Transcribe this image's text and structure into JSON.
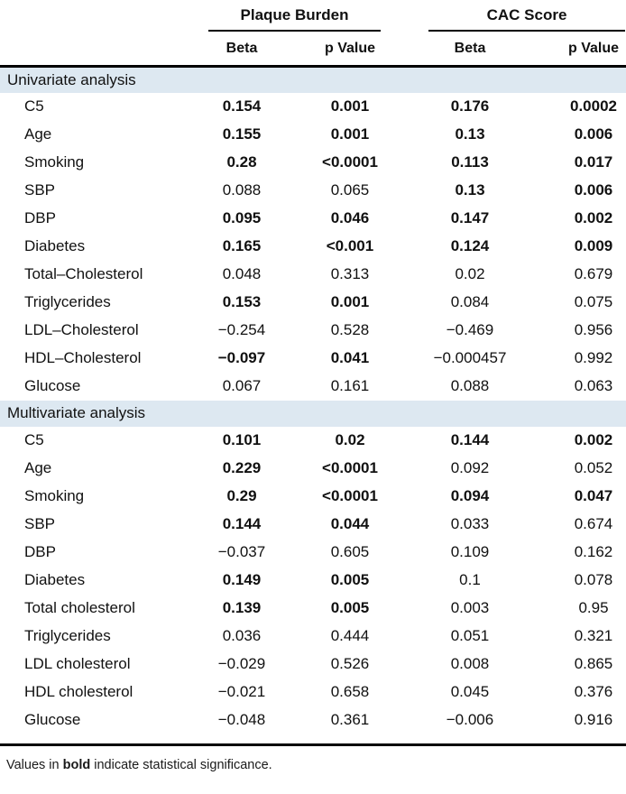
{
  "table": {
    "groups": [
      {
        "label": "Plaque Burden"
      },
      {
        "label": "CAC Score"
      }
    ],
    "subheaders": [
      "Beta",
      "p Value",
      "Beta",
      "p Value"
    ],
    "sections": [
      {
        "title": "Univariate analysis",
        "rows": [
          {
            "label": "C5",
            "cells": [
              {
                "v": "0.154",
                "b": true
              },
              {
                "v": "0.001",
                "b": true
              },
              {
                "v": "0.176",
                "b": true
              },
              {
                "v": "0.0002",
                "b": true
              }
            ]
          },
          {
            "label": "Age",
            "cells": [
              {
                "v": "0.155",
                "b": true
              },
              {
                "v": "0.001",
                "b": true
              },
              {
                "v": "0.13",
                "b": true
              },
              {
                "v": "0.006",
                "b": true
              }
            ]
          },
          {
            "label": "Smoking",
            "cells": [
              {
                "v": "0.28",
                "b": true
              },
              {
                "v": "<0.0001",
                "b": true
              },
              {
                "v": "0.113",
                "b": true
              },
              {
                "v": "0.017",
                "b": true
              }
            ]
          },
          {
            "label": "SBP",
            "cells": [
              {
                "v": "0.088",
                "b": false
              },
              {
                "v": "0.065",
                "b": false
              },
              {
                "v": "0.13",
                "b": true
              },
              {
                "v": "0.006",
                "b": true
              }
            ]
          },
          {
            "label": "DBP",
            "cells": [
              {
                "v": "0.095",
                "b": true
              },
              {
                "v": "0.046",
                "b": true
              },
              {
                "v": "0.147",
                "b": true
              },
              {
                "v": "0.002",
                "b": true
              }
            ]
          },
          {
            "label": "Diabetes",
            "cells": [
              {
                "v": "0.165",
                "b": true
              },
              {
                "v": "<0.001",
                "b": true
              },
              {
                "v": "0.124",
                "b": true
              },
              {
                "v": "0.009",
                "b": true
              }
            ]
          },
          {
            "label": "Total–Cholesterol",
            "cells": [
              {
                "v": "0.048",
                "b": false
              },
              {
                "v": "0.313",
                "b": false
              },
              {
                "v": "0.02",
                "b": false
              },
              {
                "v": "0.679",
                "b": false
              }
            ]
          },
          {
            "label": "Triglycerides",
            "cells": [
              {
                "v": "0.153",
                "b": true
              },
              {
                "v": "0.001",
                "b": true
              },
              {
                "v": "0.084",
                "b": false
              },
              {
                "v": "0.075",
                "b": false
              }
            ]
          },
          {
            "label": "LDL–Cholesterol",
            "cells": [
              {
                "v": "−0.254",
                "b": false
              },
              {
                "v": "0.528",
                "b": false
              },
              {
                "v": "−0.469",
                "b": false
              },
              {
                "v": "0.956",
                "b": false
              }
            ]
          },
          {
            "label": "HDL–Cholesterol",
            "cells": [
              {
                "v": "−0.097",
                "b": true
              },
              {
                "v": "0.041",
                "b": true
              },
              {
                "v": "−0.000457",
                "b": false
              },
              {
                "v": "0.992",
                "b": false
              }
            ]
          },
          {
            "label": "Glucose",
            "cells": [
              {
                "v": "0.067",
                "b": false
              },
              {
                "v": "0.161",
                "b": false
              },
              {
                "v": "0.088",
                "b": false
              },
              {
                "v": "0.063",
                "b": false
              }
            ]
          }
        ]
      },
      {
        "title": "Multivariate analysis",
        "rows": [
          {
            "label": "C5",
            "cells": [
              {
                "v": "0.101",
                "b": true
              },
              {
                "v": "0.02",
                "b": true
              },
              {
                "v": "0.144",
                "b": true
              },
              {
                "v": "0.002",
                "b": true
              }
            ]
          },
          {
            "label": "Age",
            "cells": [
              {
                "v": "0.229",
                "b": true
              },
              {
                "v": "<0.0001",
                "b": true
              },
              {
                "v": "0.092",
                "b": false
              },
              {
                "v": "0.052",
                "b": false
              }
            ]
          },
          {
            "label": "Smoking",
            "cells": [
              {
                "v": "0.29",
                "b": true
              },
              {
                "v": "<0.0001",
                "b": true
              },
              {
                "v": "0.094",
                "b": true
              },
              {
                "v": "0.047",
                "b": true
              }
            ]
          },
          {
            "label": "SBP",
            "cells": [
              {
                "v": "0.144",
                "b": true
              },
              {
                "v": "0.044",
                "b": true
              },
              {
                "v": "0.033",
                "b": false
              },
              {
                "v": "0.674",
                "b": false
              }
            ]
          },
          {
            "label": "DBP",
            "cells": [
              {
                "v": "−0.037",
                "b": false
              },
              {
                "v": "0.605",
                "b": false
              },
              {
                "v": "0.109",
                "b": false
              },
              {
                "v": "0.162",
                "b": false
              }
            ]
          },
          {
            "label": "Diabetes",
            "cells": [
              {
                "v": "0.149",
                "b": true
              },
              {
                "v": "0.005",
                "b": true
              },
              {
                "v": "0.1",
                "b": false
              },
              {
                "v": "0.078",
                "b": false
              }
            ]
          },
          {
            "label": "Total cholesterol",
            "cells": [
              {
                "v": "0.139",
                "b": true
              },
              {
                "v": "0.005",
                "b": true
              },
              {
                "v": "0.003",
                "b": false
              },
              {
                "v": "0.95",
                "b": false
              }
            ]
          },
          {
            "label": "Triglycerides",
            "cells": [
              {
                "v": "0.036",
                "b": false
              },
              {
                "v": "0.444",
                "b": false
              },
              {
                "v": "0.051",
                "b": false
              },
              {
                "v": "0.321",
                "b": false
              }
            ]
          },
          {
            "label": "LDL cholesterol",
            "cells": [
              {
                "v": "−0.029",
                "b": false
              },
              {
                "v": "0.526",
                "b": false
              },
              {
                "v": "0.008",
                "b": false
              },
              {
                "v": "0.865",
                "b": false
              }
            ]
          },
          {
            "label": "HDL cholesterol",
            "cells": [
              {
                "v": "−0.021",
                "b": false
              },
              {
                "v": "0.658",
                "b": false
              },
              {
                "v": "0.045",
                "b": false
              },
              {
                "v": "0.376",
                "b": false
              }
            ]
          },
          {
            "label": "Glucose",
            "cells": [
              {
                "v": "−0.048",
                "b": false
              },
              {
                "v": "0.361",
                "b": false
              },
              {
                "v": "−0.006",
                "b": false
              },
              {
                "v": "0.916",
                "b": false
              }
            ]
          }
        ]
      }
    ],
    "footnote": {
      "prefix": "Values in ",
      "bold": "bold",
      "suffix": " indicate statistical significance."
    }
  },
  "colors": {
    "section_background": "#dde8f1",
    "rule": "#000000",
    "text": "#111111"
  }
}
